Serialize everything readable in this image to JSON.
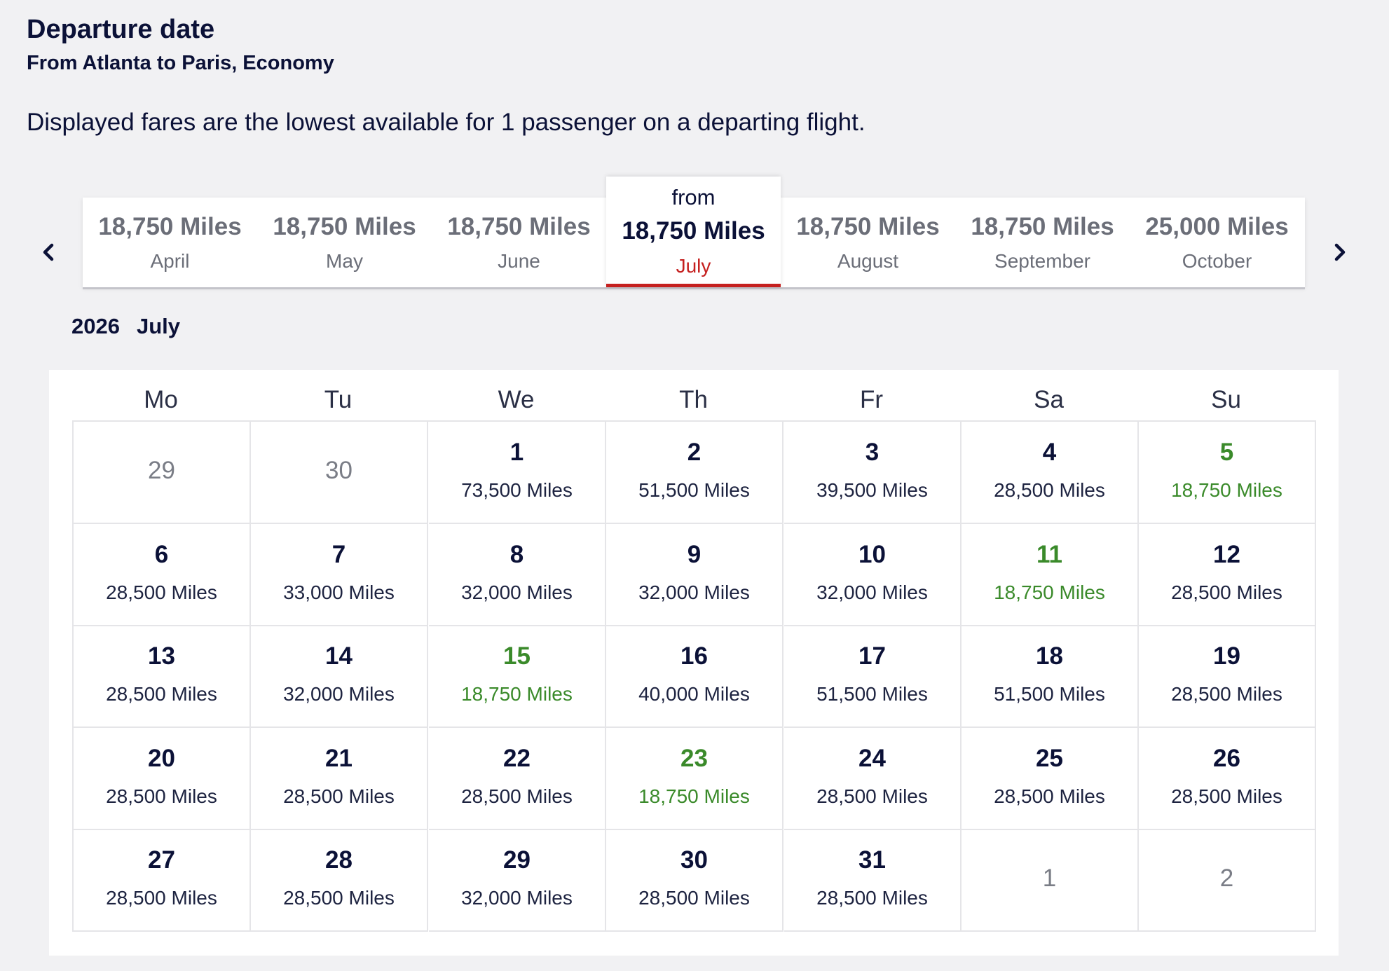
{
  "header": {
    "title": "Departure date",
    "subtitle": "From Atlanta to Paris, Economy",
    "note": "Displayed fares are the lowest available for 1 passenger on a departing flight."
  },
  "month_strip": {
    "from_label": "from",
    "months": [
      {
        "miles": "18,750 Miles",
        "name": "April"
      },
      {
        "miles": "18,750 Miles",
        "name": "May"
      },
      {
        "miles": "18,750 Miles",
        "name": "June"
      },
      {
        "miles": "18,750 Miles",
        "name": "July",
        "active": true
      },
      {
        "miles": "18,750 Miles",
        "name": "August"
      },
      {
        "miles": "18,750 Miles",
        "name": "September"
      },
      {
        "miles": "25,000 Miles",
        "name": "October"
      }
    ],
    "prev_icon": "chevron-left-icon",
    "next_icon": "chevron-right-icon"
  },
  "calendar": {
    "year": "2026",
    "month": "July",
    "weekdays": [
      "Mo",
      "Tu",
      "We",
      "Th",
      "Fr",
      "Sa",
      "Su"
    ],
    "weeks": [
      [
        {
          "day": "29",
          "outside": true
        },
        {
          "day": "30",
          "outside": true
        },
        {
          "day": "1",
          "price": "73,500 Miles"
        },
        {
          "day": "2",
          "price": "51,500 Miles"
        },
        {
          "day": "3",
          "price": "39,500 Miles"
        },
        {
          "day": "4",
          "price": "28,500 Miles"
        },
        {
          "day": "5",
          "price": "18,750 Miles",
          "lowest": true
        }
      ],
      [
        {
          "day": "6",
          "price": "28,500 Miles"
        },
        {
          "day": "7",
          "price": "33,000 Miles"
        },
        {
          "day": "8",
          "price": "32,000 Miles"
        },
        {
          "day": "9",
          "price": "32,000 Miles"
        },
        {
          "day": "10",
          "price": "32,000 Miles"
        },
        {
          "day": "11",
          "price": "18,750 Miles",
          "lowest": true
        },
        {
          "day": "12",
          "price": "28,500 Miles"
        }
      ],
      [
        {
          "day": "13",
          "price": "28,500 Miles"
        },
        {
          "day": "14",
          "price": "32,000 Miles"
        },
        {
          "day": "15",
          "price": "18,750 Miles",
          "lowest": true
        },
        {
          "day": "16",
          "price": "40,000 Miles"
        },
        {
          "day": "17",
          "price": "51,500 Miles"
        },
        {
          "day": "18",
          "price": "51,500 Miles"
        },
        {
          "day": "19",
          "price": "28,500 Miles"
        }
      ],
      [
        {
          "day": "20",
          "price": "28,500 Miles"
        },
        {
          "day": "21",
          "price": "28,500 Miles"
        },
        {
          "day": "22",
          "price": "28,500 Miles"
        },
        {
          "day": "23",
          "price": "18,750 Miles",
          "lowest": true
        },
        {
          "day": "24",
          "price": "28,500 Miles"
        },
        {
          "day": "25",
          "price": "28,500 Miles"
        },
        {
          "day": "26",
          "price": "28,500 Miles"
        }
      ],
      [
        {
          "day": "27",
          "price": "28,500 Miles"
        },
        {
          "day": "28",
          "price": "28,500 Miles"
        },
        {
          "day": "29",
          "price": "32,000 Miles"
        },
        {
          "day": "30",
          "price": "28,500 Miles"
        },
        {
          "day": "31",
          "price": "28,500 Miles"
        },
        {
          "day": "1",
          "outside": true
        },
        {
          "day": "2",
          "outside": true
        }
      ]
    ]
  },
  "colors": {
    "navy_text": "#0b1137",
    "muted_text": "#6b6e78",
    "lowest_fare_green": "#3a8a2a",
    "active_month_red": "#c5201f",
    "page_background": "#f1f1f3"
  }
}
